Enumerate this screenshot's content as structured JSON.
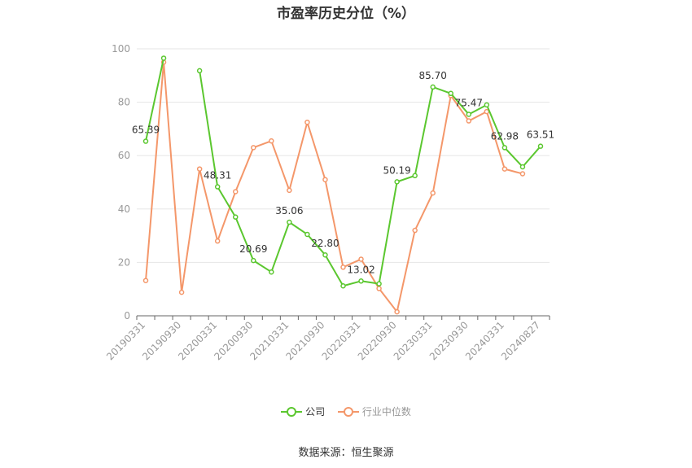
{
  "title": "市盈率历史分位（%）",
  "source_label": "数据来源：恒生聚源",
  "colors": {
    "company": "#5bc72f",
    "industry": "#f4976a"
  },
  "chart_data": {
    "type": "line",
    "title": "市盈率历史分位（%）",
    "x": [
      "20190331",
      "20190630",
      "20190930",
      "20191231",
      "20200331",
      "20200630",
      "20200930",
      "20201231",
      "20210331",
      "20210630",
      "20210930",
      "20211231",
      "20220331",
      "20220630",
      "20220930",
      "20221231",
      "20230331",
      "20230630",
      "20230930",
      "20231231",
      "20240331",
      "20240630",
      "20240827"
    ],
    "x_tick_labels": [
      "20190331",
      "20190930",
      "20200331",
      "20200930",
      "20210331",
      "20210930",
      "20220331",
      "20220930",
      "20230331",
      "20230930",
      "20240331",
      "20240827"
    ],
    "ylim": [
      0,
      100
    ],
    "y_ticks": [
      0,
      20,
      40,
      60,
      80,
      100
    ],
    "grid": true,
    "legend_position": "bottom",
    "series": [
      {
        "name": "公司",
        "color": "#5bc72f",
        "values": [
          65.39,
          96.5,
          null,
          91.8,
          48.31,
          37.0,
          20.69,
          16.4,
          35.06,
          30.5,
          22.8,
          11.2,
          13.02,
          12.0,
          50.19,
          52.5,
          85.7,
          83.3,
          75.47,
          79.0,
          62.98,
          55.8,
          63.51
        ]
      },
      {
        "name": "行业中位数",
        "color": "#f4976a",
        "values": [
          13.2,
          95.0,
          8.8,
          55.0,
          28.0,
          46.5,
          63.0,
          65.5,
          47.0,
          72.5,
          51.0,
          18.2,
          21.2,
          10.2,
          1.5,
          32.0,
          46.0,
          82.5,
          73.0,
          76.5,
          55.0,
          53.2,
          null
        ]
      }
    ],
    "annotations": [
      {
        "index": 0,
        "text": "65.39"
      },
      {
        "index": 4,
        "text": "48.31"
      },
      {
        "index": 6,
        "text": "20.69"
      },
      {
        "index": 8,
        "text": "35.06"
      },
      {
        "index": 10,
        "text": "22.80"
      },
      {
        "index": 12,
        "text": "13.02"
      },
      {
        "index": 14,
        "text": "50.19"
      },
      {
        "index": 16,
        "text": "85.70"
      },
      {
        "index": 18,
        "text": "75.47"
      },
      {
        "index": 20,
        "text": "62.98"
      },
      {
        "index": 22,
        "text": "63.51"
      }
    ]
  }
}
